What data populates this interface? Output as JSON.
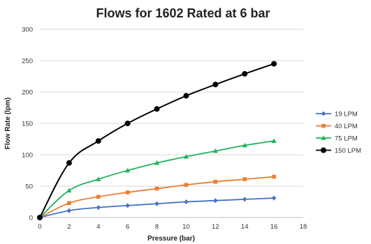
{
  "chart_data": {
    "type": "line",
    "title": "Flows for 1602 Rated at 6 bar",
    "xlabel": "Pressure (bar)",
    "ylabel": "Flow Rate (lpm)",
    "xlim": [
      0,
      18
    ],
    "ylim": [
      0,
      300
    ],
    "xticks": [
      0,
      2,
      4,
      6,
      8,
      10,
      12,
      14,
      16,
      18
    ],
    "yticks": [
      0,
      50,
      100,
      150,
      200,
      250,
      300
    ],
    "grid": "horizontal",
    "legend_position": "right",
    "x": [
      0,
      2,
      4,
      6,
      8,
      10,
      12,
      14,
      16
    ],
    "series": [
      {
        "name": "19 LPM",
        "color": "#4472c4",
        "marker": "diamond",
        "values": [
          0,
          11,
          16,
          19,
          22,
          25,
          27,
          29,
          31
        ]
      },
      {
        "name": "40 LPM",
        "color": "#ed7d31",
        "marker": "square",
        "values": [
          0,
          23,
          33,
          40,
          46,
          52,
          57,
          61,
          65
        ]
      },
      {
        "name": "75 LPM",
        "color": "#21b35e",
        "marker": "triangle",
        "values": [
          0,
          43,
          61,
          75,
          87,
          97,
          106,
          115,
          122
        ]
      },
      {
        "name": "150 LPM",
        "color": "#000000",
        "marker": "circle",
        "values": [
          0,
          87,
          122,
          150,
          173,
          194,
          212,
          229,
          245
        ]
      }
    ]
  }
}
